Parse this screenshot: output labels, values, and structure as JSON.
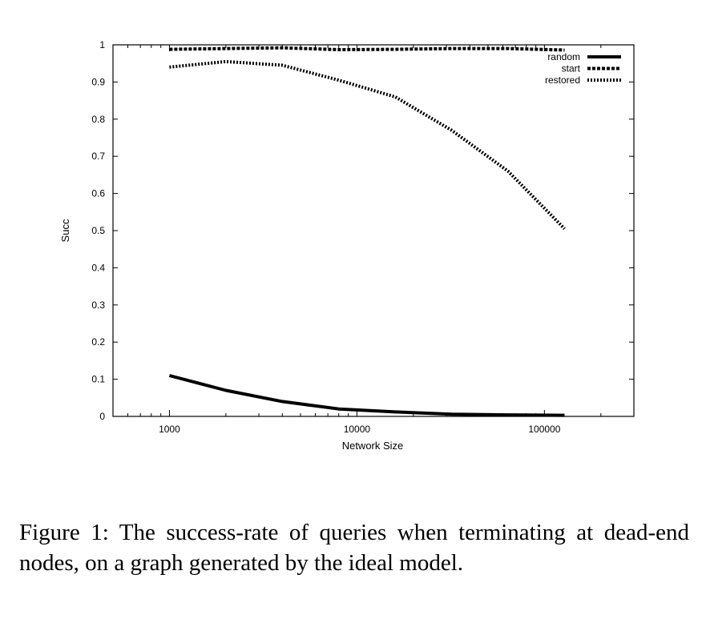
{
  "chart_data": {
    "type": "line",
    "title": "",
    "xlabel": "Network Size",
    "ylabel": "Succ",
    "xscale": "log",
    "xlim": [
      500,
      300000
    ],
    "ylim": [
      0,
      1
    ],
    "xticks": [
      1000,
      10000,
      100000
    ],
    "xtick_labels": [
      "1000",
      "10000",
      "100000"
    ],
    "yticks": [
      0,
      0.1,
      0.2,
      0.3,
      0.4,
      0.5,
      0.6,
      0.7,
      0.8,
      0.9,
      1
    ],
    "ytick_labels": [
      "0",
      "0.1",
      "0.2",
      "0.3",
      "0.4",
      "0.5",
      "0.6",
      "0.7",
      "0.8",
      "0.9",
      "1"
    ],
    "grid": false,
    "legend_position": "top-right",
    "x": [
      1000,
      2000,
      4000,
      8000,
      16000,
      32000,
      64000,
      128000
    ],
    "series": [
      {
        "name": "random",
        "style": "solid",
        "values": [
          0.11,
          0.07,
          0.04,
          0.02,
          0.012,
          0.006,
          0.004,
          0.003
        ]
      },
      {
        "name": "start",
        "style": "dashed",
        "values": [
          0.988,
          0.99,
          0.992,
          0.987,
          0.988,
          0.99,
          0.99,
          0.986
        ]
      },
      {
        "name": "restored",
        "style": "dotted",
        "values": [
          0.94,
          0.955,
          0.945,
          0.905,
          0.86,
          0.77,
          0.66,
          0.505
        ]
      }
    ]
  },
  "caption": "Figure 1: The success-rate of queries when terminating at dead-end nodes, on a graph generated by the ideal model."
}
